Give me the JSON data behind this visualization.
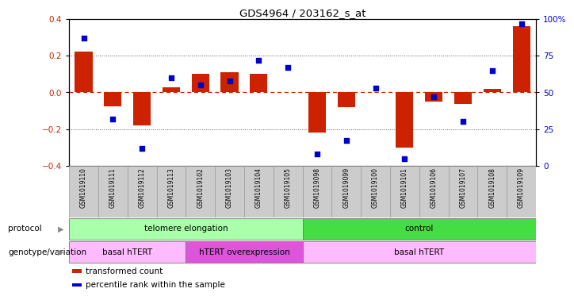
{
  "title": "GDS4964 / 203162_s_at",
  "samples": [
    "GSM1019110",
    "GSM1019111",
    "GSM1019112",
    "GSM1019113",
    "GSM1019102",
    "GSM1019103",
    "GSM1019104",
    "GSM1019105",
    "GSM1019098",
    "GSM1019099",
    "GSM1019100",
    "GSM1019101",
    "GSM1019106",
    "GSM1019107",
    "GSM1019108",
    "GSM1019109"
  ],
  "bar_values": [
    0.225,
    -0.075,
    -0.18,
    0.03,
    0.1,
    0.11,
    0.1,
    0.0,
    -0.22,
    -0.08,
    0.0,
    -0.3,
    -0.05,
    -0.065,
    0.02,
    0.36
  ],
  "dot_values": [
    87,
    32,
    12,
    60,
    55,
    58,
    72,
    67,
    8,
    17,
    53,
    5,
    47,
    30,
    65,
    97
  ],
  "ylim": [
    -0.4,
    0.4
  ],
  "yticks_left": [
    -0.4,
    -0.2,
    0.0,
    0.2,
    0.4
  ],
  "yticks_right": [
    0,
    25,
    50,
    75,
    100
  ],
  "ytick_labels_right": [
    "0",
    "25",
    "50",
    "75",
    "100%"
  ],
  "bar_color": "#cc2200",
  "dot_color": "#0000cc",
  "zero_line_color": "#cc2200",
  "dotted_line_color": "#555555",
  "bg_color": "#ffffff",
  "protocol_groups": [
    {
      "label": "telomere elongation",
      "start": 0,
      "end": 7,
      "color": "#aaffaa"
    },
    {
      "label": "control",
      "start": 8,
      "end": 15,
      "color": "#44dd44"
    }
  ],
  "genotype_groups": [
    {
      "label": "basal hTERT",
      "start": 0,
      "end": 3,
      "color": "#ffbbff"
    },
    {
      "label": "hTERT overexpression",
      "start": 4,
      "end": 7,
      "color": "#dd55dd"
    },
    {
      "label": "basal hTERT",
      "start": 8,
      "end": 15,
      "color": "#ffbbff"
    }
  ],
  "legend_items": [
    {
      "label": "transformed count",
      "color": "#cc2200"
    },
    {
      "label": "percentile rank within the sample",
      "color": "#0000cc"
    }
  ],
  "protocol_label": "protocol",
  "genotype_label": "genotype/variation",
  "label_row_color": "#cccccc",
  "label_row_edge": "#999999"
}
